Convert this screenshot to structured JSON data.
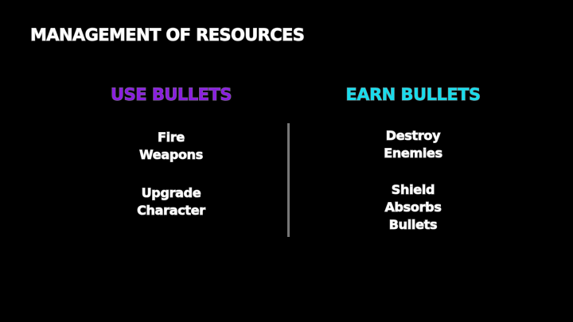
{
  "title": "MANAGEMENT OF RESOURCES",
  "colors": {
    "background": "#000000",
    "use_heading": "#8a1fe0",
    "earn_heading": "#19dcec",
    "text": "#ffffff",
    "divider": "#777777"
  },
  "left_column": {
    "heading": "USE BULLETS",
    "items": [
      "Fire\nWeapons",
      "Upgrade\nCharacter"
    ]
  },
  "right_column": {
    "heading": "EARN BULLETS",
    "items": [
      "Destroy\nEnemies",
      "Shield\nAbsorbs\nBullets"
    ]
  }
}
